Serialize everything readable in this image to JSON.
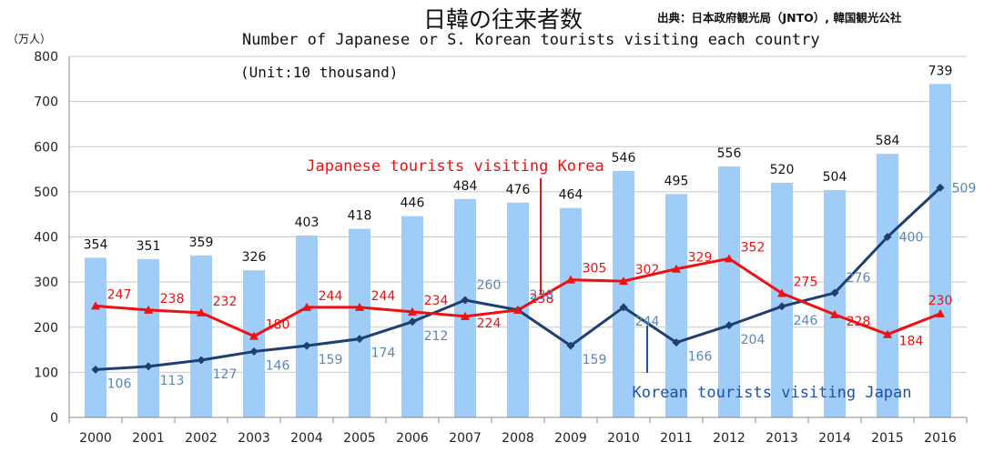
{
  "header": {
    "title": "日韓の往来者数",
    "source": "出典：日本政府観光局（JNTO）, 韓国観光公社",
    "subtitle": "Number of Japanese or S. Korean tourists visiting each country",
    "unit_note": "(Unit:10 thousand)",
    "y_unit": "（万人）"
  },
  "colors": {
    "bar": "#9fcdf7",
    "japanese_line": "#ee1111",
    "korean_line": "#1f3f70",
    "korean_label": "#5a86b8",
    "korean_annotation": "#1f4fa8"
  },
  "chart_data": {
    "type": "bar",
    "categories": [
      "2000",
      "2001",
      "2002",
      "2003",
      "2004",
      "2005",
      "2006",
      "2007",
      "2008",
      "2009",
      "2010",
      "2011",
      "2012",
      "2013",
      "2014",
      "2015",
      "2016"
    ],
    "series": [
      {
        "chart_type": "bar",
        "values": [
          354,
          351,
          359,
          326,
          403,
          418,
          446,
          484,
          476,
          464,
          546,
          495,
          556,
          520,
          504,
          584,
          739
        ]
      },
      {
        "name": "Japanese tourists visiting Korea",
        "chart_type": "line",
        "marker": "triangle",
        "values": [
          247,
          238,
          232,
          180,
          244,
          244,
          234,
          224,
          238,
          305,
          302,
          329,
          352,
          275,
          228,
          184,
          230
        ]
      },
      {
        "name": "Korean tourists visiting Japan",
        "chart_type": "line",
        "marker": "diamond",
        "values": [
          106,
          113,
          127,
          146,
          159,
          174,
          212,
          260,
          238,
          159,
          244,
          166,
          204,
          246,
          276,
          400,
          509
        ]
      }
    ],
    "yticks": [
      0,
      100,
      200,
      300,
      400,
      500,
      600,
      700,
      800
    ],
    "ylim": [
      0,
      800
    ],
    "grid": "horizontal",
    "annotations": [
      "Japanese tourists visiting Korea",
      "Korean tourists visiting Japan"
    ]
  }
}
